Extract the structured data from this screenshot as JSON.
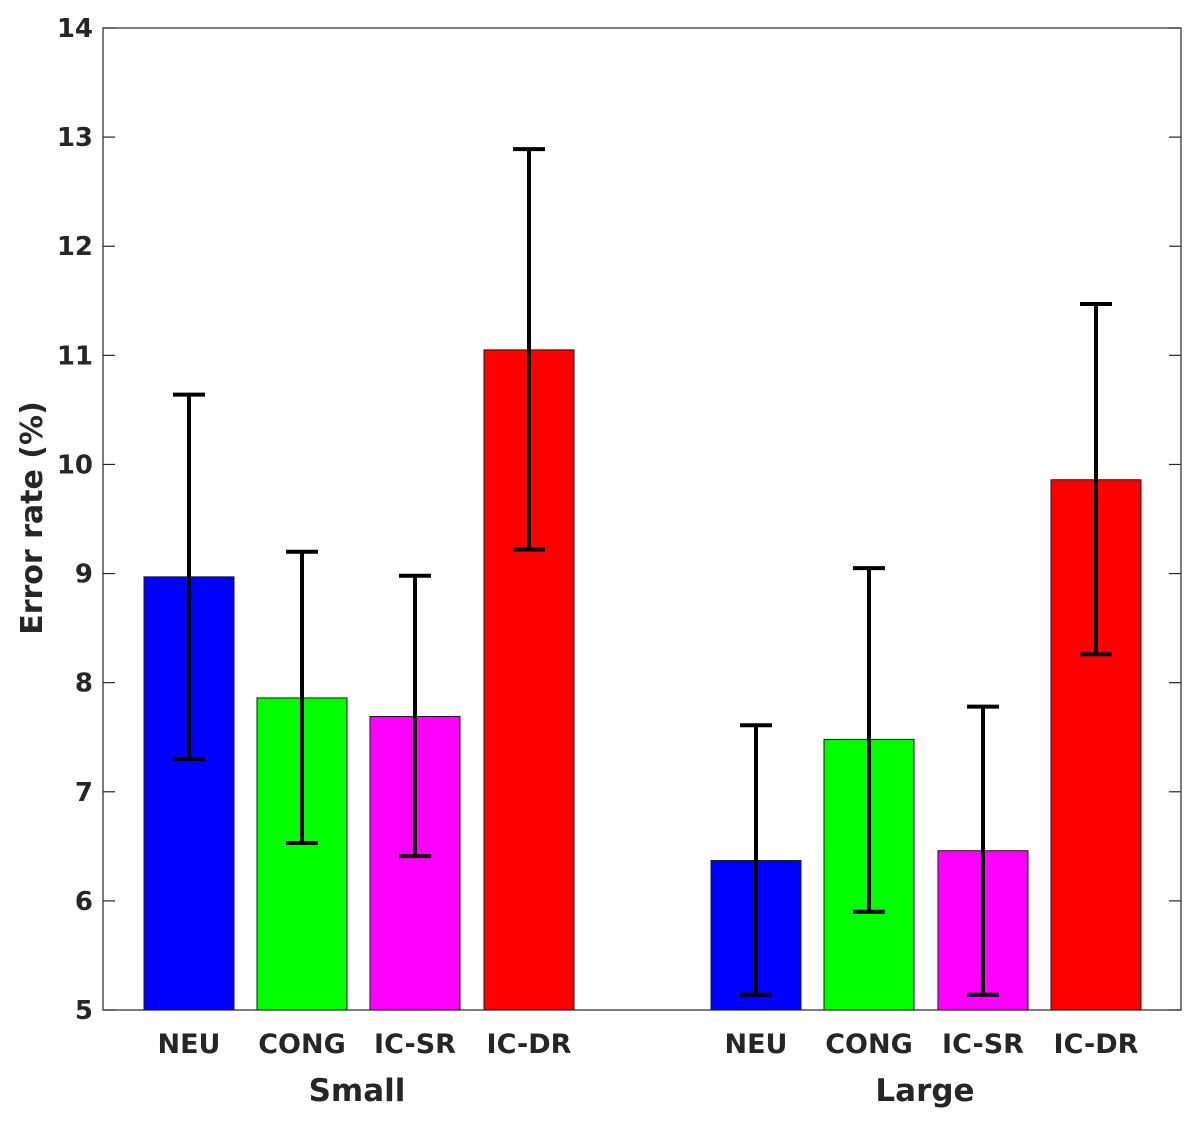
{
  "chart_data": {
    "type": "bar",
    "ylabel": "Error rate (%)",
    "xlabel": "",
    "ylim": [
      5,
      14
    ],
    "yticks": [
      5,
      6,
      7,
      8,
      9,
      10,
      11,
      12,
      13,
      14
    ],
    "grid": false,
    "groups": [
      {
        "name": "Small",
        "bars": [
          {
            "category": "NEU",
            "value": 8.97,
            "err_low": 7.3,
            "err_high": 10.64,
            "color": "#0000ff"
          },
          {
            "category": "CONG",
            "value": 7.86,
            "err_low": 6.53,
            "err_high": 9.2,
            "color": "#00ff00"
          },
          {
            "category": "IC-SR",
            "value": 7.69,
            "err_low": 6.41,
            "err_high": 8.98,
            "color": "#ff00ff"
          },
          {
            "category": "IC-DR",
            "value": 11.05,
            "err_low": 9.22,
            "err_high": 12.89,
            "color": "#ff0000"
          }
        ]
      },
      {
        "name": "Large",
        "bars": [
          {
            "category": "NEU",
            "value": 6.37,
            "err_low": 5.14,
            "err_high": 7.61,
            "color": "#0000ff"
          },
          {
            "category": "CONG",
            "value": 7.48,
            "err_low": 5.9,
            "err_high": 9.05,
            "color": "#00ff00"
          },
          {
            "category": "IC-SR",
            "value": 6.46,
            "err_low": 5.14,
            "err_high": 7.78,
            "color": "#ff00ff"
          },
          {
            "category": "IC-DR",
            "value": 9.86,
            "err_low": 8.26,
            "err_high": 11.47,
            "color": "#ff0000"
          }
        ]
      }
    ]
  }
}
